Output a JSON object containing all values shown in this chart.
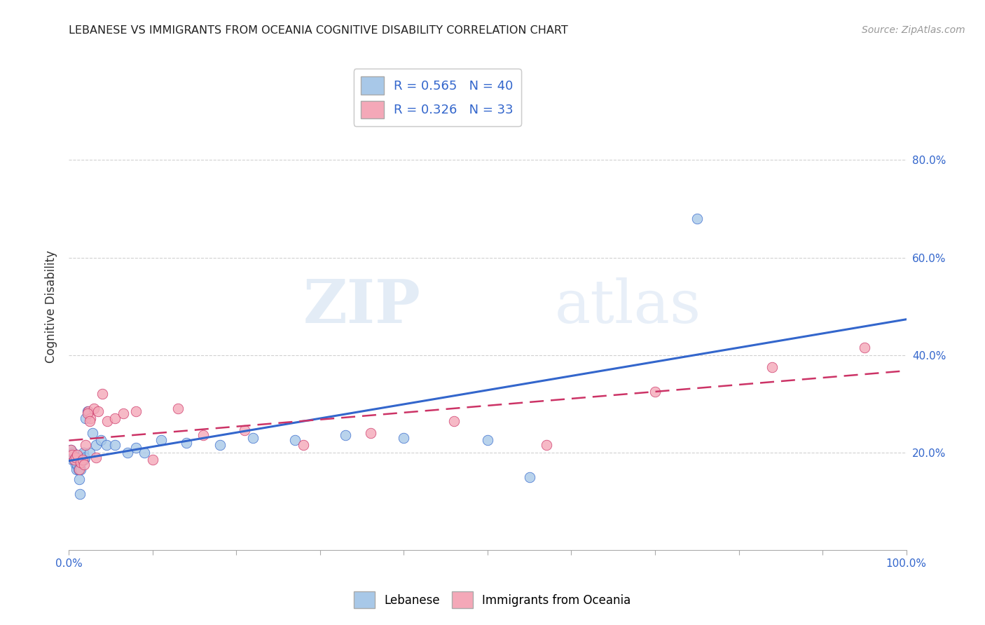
{
  "title": "LEBANESE VS IMMIGRANTS FROM OCEANIA COGNITIVE DISABILITY CORRELATION CHART",
  "source": "Source: ZipAtlas.com",
  "ylabel": "Cognitive Disability",
  "legend_label1": "Lebanese",
  "legend_label2": "Immigrants from Oceania",
  "R1": 0.565,
  "N1": 40,
  "R2": 0.326,
  "N2": 33,
  "xlim": [
    0.0,
    1.0
  ],
  "ylim": [
    0.0,
    1.0
  ],
  "yticks": [
    0.2,
    0.4,
    0.6,
    0.8
  ],
  "color_blue": "#a8c8e8",
  "color_pink": "#f4a8b8",
  "line_blue": "#3366cc",
  "line_pink": "#cc3366",
  "background": "#ffffff",
  "watermark_zip": "ZIP",
  "watermark_atlas": "atlas",
  "blue_x": [
    0.001,
    0.002,
    0.003,
    0.004,
    0.005,
    0.006,
    0.007,
    0.008,
    0.009,
    0.01,
    0.011,
    0.012,
    0.013,
    0.014,
    0.015,
    0.016,
    0.017,
    0.018,
    0.019,
    0.02,
    0.022,
    0.025,
    0.028,
    0.032,
    0.038,
    0.045,
    0.055,
    0.07,
    0.08,
    0.09,
    0.11,
    0.14,
    0.18,
    0.22,
    0.27,
    0.33,
    0.4,
    0.5,
    0.55,
    0.75
  ],
  "blue_y": [
    0.195,
    0.205,
    0.19,
    0.185,
    0.2,
    0.185,
    0.19,
    0.175,
    0.165,
    0.175,
    0.165,
    0.145,
    0.115,
    0.165,
    0.185,
    0.195,
    0.2,
    0.185,
    0.19,
    0.27,
    0.285,
    0.2,
    0.24,
    0.215,
    0.225,
    0.215,
    0.215,
    0.2,
    0.21,
    0.2,
    0.225,
    0.22,
    0.215,
    0.23,
    0.225,
    0.235,
    0.23,
    0.225,
    0.15,
    0.68
  ],
  "pink_x": [
    0.002,
    0.004,
    0.006,
    0.008,
    0.01,
    0.012,
    0.014,
    0.016,
    0.018,
    0.02,
    0.023,
    0.026,
    0.03,
    0.035,
    0.04,
    0.046,
    0.055,
    0.065,
    0.08,
    0.1,
    0.13,
    0.16,
    0.21,
    0.28,
    0.36,
    0.46,
    0.57,
    0.7,
    0.84,
    0.95,
    0.022,
    0.025,
    0.032
  ],
  "pink_y": [
    0.205,
    0.195,
    0.185,
    0.19,
    0.195,
    0.165,
    0.18,
    0.185,
    0.175,
    0.215,
    0.285,
    0.27,
    0.29,
    0.285,
    0.32,
    0.265,
    0.27,
    0.28,
    0.285,
    0.185,
    0.29,
    0.235,
    0.245,
    0.215,
    0.24,
    0.265,
    0.215,
    0.325,
    0.375,
    0.415,
    0.28,
    0.265,
    0.19
  ]
}
